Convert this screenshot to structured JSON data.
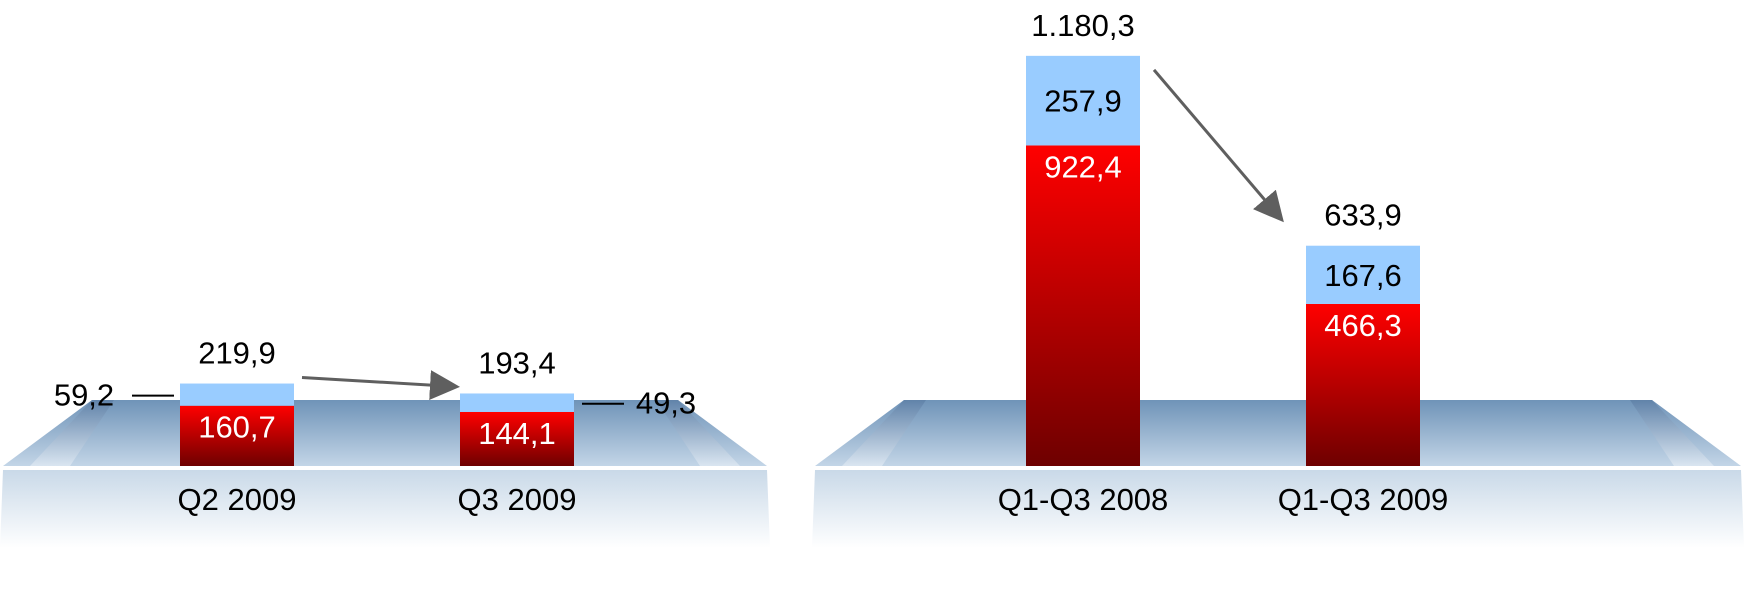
{
  "colors": {
    "upper_segment": "#99ccff",
    "lower_segment_top": "#ff0000",
    "lower_segment_bottom": "#6e0000",
    "arrow": "#5f5f5f",
    "platform_top": "#6f93b8",
    "platform_bottom": "#dfe9f3"
  },
  "chart_data": [
    {
      "type": "bar",
      "stacked": true,
      "categories": [
        "Q2 2009",
        "Q3 2009"
      ],
      "series": [
        {
          "values": [
            160.7,
            144.1
          ],
          "labels": [
            "160,7",
            "144,1"
          ]
        },
        {
          "values": [
            59.2,
            49.3
          ],
          "labels": [
            "59,2",
            "49,3"
          ]
        }
      ],
      "totals": [
        219.9,
        193.4
      ],
      "total_labels": [
        "219,9",
        "193,4"
      ],
      "trend_arrow": true
    },
    {
      "type": "bar",
      "stacked": true,
      "categories": [
        "Q1-Q3 2008",
        "Q1-Q3 2009"
      ],
      "series": [
        {
          "values": [
            922.4,
            466.3
          ],
          "labels": [
            "922,4",
            "466,3"
          ]
        },
        {
          "values": [
            257.9,
            167.6
          ],
          "labels": [
            "257,9",
            "167,6"
          ]
        }
      ],
      "totals": [
        1180.3,
        633.9
      ],
      "total_labels": [
        "1.180,3",
        "633,9"
      ],
      "trend_arrow": true
    }
  ]
}
